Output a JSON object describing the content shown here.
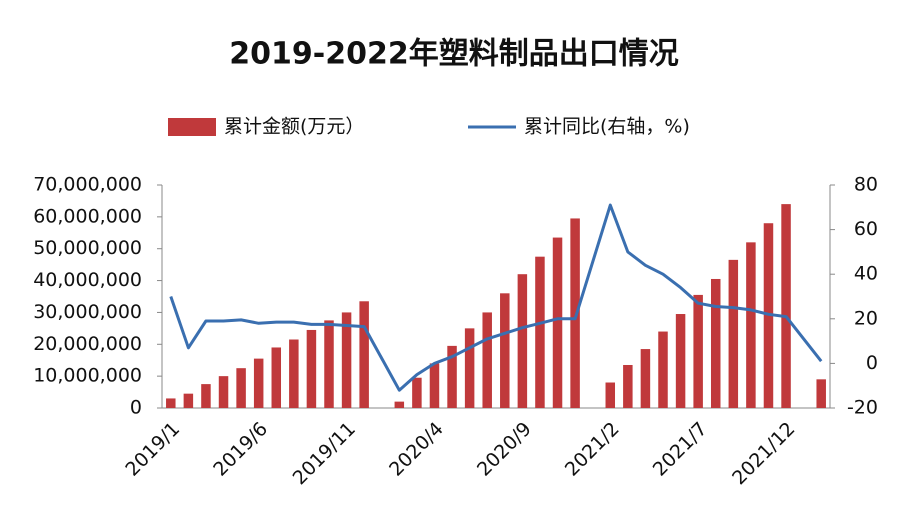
{
  "chart_data": {
    "type": "bar_line",
    "title": "2019-2022年塑料制品出口情况",
    "categories": [
      "2019/1",
      null,
      null,
      null,
      null,
      "2019/6",
      null,
      null,
      null,
      null,
      "2019/11",
      null,
      null,
      null,
      null,
      "2020/4",
      null,
      null,
      null,
      null,
      "2020/9",
      null,
      null,
      null,
      null,
      "2021/2",
      null,
      null,
      null,
      null,
      "2021/7",
      null,
      null,
      null,
      null,
      "2021/12",
      null,
      null
    ],
    "series": [
      {
        "name": "累计金额(万元）",
        "type": "bar",
        "color": "#c0393b",
        "values": [
          3000000,
          4500000,
          7500000,
          10000000,
          12500000,
          15500000,
          19000000,
          21500000,
          24500000,
          27500000,
          30000000,
          33500000,
          null,
          2000000,
          9500000,
          14000000,
          19500000,
          25000000,
          30000000,
          36000000,
          42000000,
          47500000,
          53500000,
          59500000,
          null,
          8000000,
          13500000,
          18500000,
          24000000,
          29500000,
          35500000,
          40500000,
          46500000,
          52000000,
          58000000,
          64000000,
          null,
          9000000
        ]
      },
      {
        "name": "累计同比(右轴，%)",
        "type": "line",
        "axis": "y2",
        "color": "#3a6fb0",
        "values": [
          30,
          7,
          19,
          19,
          19.5,
          18,
          18.5,
          18.5,
          17.5,
          17.5,
          17,
          16.5,
          null,
          -12,
          -5,
          0,
          3,
          7,
          11,
          13.5,
          16,
          18,
          20,
          20,
          null,
          71,
          50,
          44,
          40,
          34,
          27,
          25.5,
          25,
          24,
          22,
          21,
          null,
          1
        ]
      }
    ],
    "ylim": [
      0,
      70000000
    ],
    "yticks": [
      0,
      {
        "value": 10000000,
        "label": "10,000,000"
      },
      {
        "value": 20000000,
        "label": "20,000,000"
      },
      {
        "value": 30000000,
        "label": "30,000,000"
      },
      {
        "value": 40000000,
        "label": "40,000,000"
      },
      {
        "value": 50000000,
        "label": "50,000,000"
      },
      {
        "value": 60000000,
        "label": "60,000,000"
      },
      {
        "value": 70000000,
        "label": "70,000,000"
      }
    ],
    "y2lim": [
      -20,
      80
    ],
    "y2ticks": [
      -20,
      0,
      20,
      40,
      60,
      80
    ],
    "legend": "top"
  }
}
